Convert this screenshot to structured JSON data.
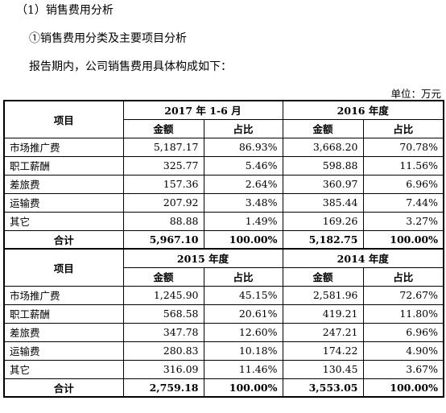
{
  "heading1": "（1）销售费用分析",
  "heading2": "①销售费用分类及主要项目分析",
  "intro": "报告期内，公司销售费用具体构成如下：",
  "unit": "单位：万元",
  "table": {
    "blocks": [
      {
        "header": {
          "item": "项目",
          "periods": [
            "2017 年 1-6 月",
            "2016 年度"
          ],
          "subheaders": [
            "金额",
            "占比",
            "金额",
            "占比"
          ]
        },
        "rows": [
          [
            "市场推广费",
            "5,187.17",
            "86.93%",
            "3,668.20",
            "70.78%"
          ],
          [
            "职工薪酬",
            "325.77",
            "5.46%",
            "598.88",
            "11.56%"
          ],
          [
            "差旅费",
            "157.36",
            "2.64%",
            "360.97",
            "6.96%"
          ],
          [
            "运输费",
            "207.92",
            "3.48%",
            "385.44",
            "7.44%"
          ],
          [
            "其它",
            "88.88",
            "1.49%",
            "169.26",
            "3.27%"
          ]
        ],
        "total": [
          "合计",
          "5,967.10",
          "100.00%",
          "5,182.75",
          "100.00%"
        ]
      },
      {
        "header": {
          "item": "项目",
          "periods": [
            "2015 年度",
            "2014 年度"
          ],
          "subheaders": [
            "金额",
            "占比",
            "金额",
            "占比"
          ]
        },
        "rows": [
          [
            "市场推广费",
            "1,245.90",
            "45.15%",
            "2,581.96",
            "72.67%"
          ],
          [
            "职工薪酬",
            "568.58",
            "20.61%",
            "419.21",
            "11.80%"
          ],
          [
            "差旅费",
            "347.78",
            "12.60%",
            "247.21",
            "6.96%"
          ],
          [
            "运输费",
            "280.83",
            "10.18%",
            "174.22",
            "4.90%"
          ],
          [
            "其它",
            "316.09",
            "11.46%",
            "130.45",
            "3.67%"
          ]
        ],
        "total": [
          "合计",
          "2,759.18",
          "100.00%",
          "3,553.05",
          "100.00%"
        ]
      }
    ]
  }
}
